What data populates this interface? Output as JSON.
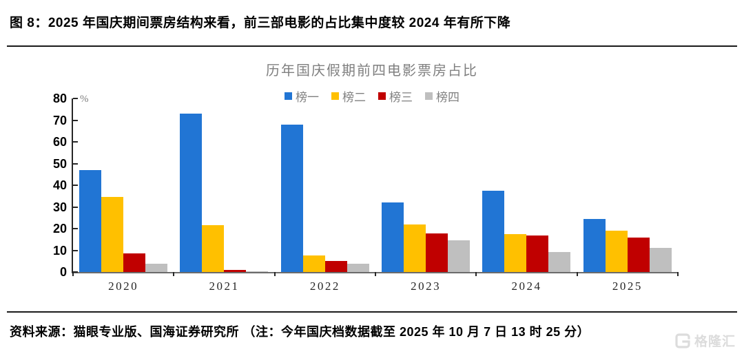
{
  "header": {
    "title": "图 8：2025 年国庆期间票房结构来看，前三部电影的占比集中度较 2024 年有所下降"
  },
  "chart_data": {
    "type": "bar",
    "title": "历年国庆假期前四电影票房占比",
    "categories": [
      "2020",
      "2021",
      "2022",
      "2023",
      "2024",
      "2025"
    ],
    "series": [
      {
        "name": "榜一",
        "color": "#2175D4",
        "values": [
          47,
          73,
          68,
          32,
          37.5,
          24.5
        ]
      },
      {
        "name": "榜二",
        "color": "#FFC000",
        "values": [
          34.5,
          21.5,
          7.5,
          22,
          17.5,
          19
        ]
      },
      {
        "name": "榜三",
        "color": "#C00000",
        "values": [
          8.7,
          0.8,
          5,
          17.8,
          16.8,
          16
        ]
      },
      {
        "name": "榜四",
        "color": "#BFBFBF",
        "values": [
          3.8,
          0.4,
          3.8,
          14.5,
          9.3,
          11.2
        ]
      }
    ],
    "xlabel": "",
    "ylabel": "%",
    "ylim": [
      0,
      80
    ],
    "ytick_step": 10,
    "grid": false,
    "legend_position": "top"
  },
  "footer": {
    "source": "资料来源：猫眼专业版、国海证券研究所 （注：今年国庆档数据截至 2025 年 10 月 7 日 13 时 25 分）",
    "logo_text": "格隆汇"
  }
}
